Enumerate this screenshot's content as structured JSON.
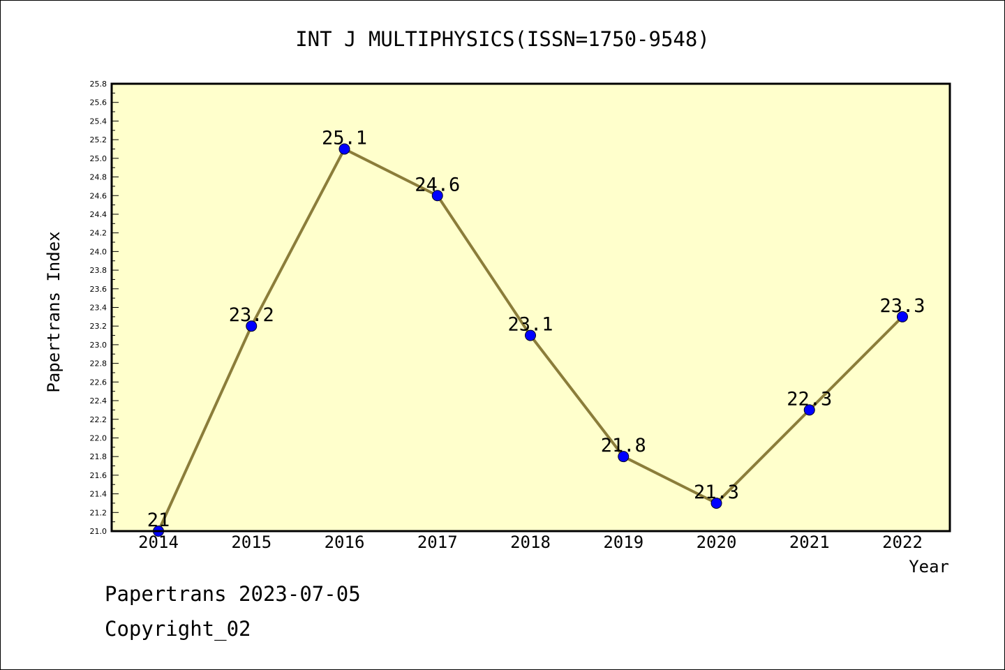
{
  "chart_data": {
    "type": "line",
    "title": "INT J MULTIPHYSICS(ISSN=1750-9548)",
    "xlabel": "Year",
    "ylabel": "Papertrans Index",
    "categories": [
      "2014",
      "2015",
      "2016",
      "2017",
      "2018",
      "2019",
      "2020",
      "2021",
      "2022"
    ],
    "values": [
      21.0,
      23.2,
      25.1,
      24.6,
      23.1,
      21.8,
      21.3,
      22.3,
      23.3
    ],
    "data_labels": [
      "21",
      "23.2",
      "25.1",
      "24.6",
      "23.1",
      "21.8",
      "21.3",
      "22.3",
      "23.3"
    ],
    "ylim": [
      21.0,
      25.8
    ],
    "yticks": [
      "21.0",
      "21.2",
      "21.4",
      "21.6",
      "21.8",
      "22.0",
      "22.2",
      "22.4",
      "22.6",
      "22.8",
      "23.0",
      "23.2",
      "23.4",
      "23.6",
      "23.8",
      "24.0",
      "24.2",
      "24.4",
      "24.6",
      "24.8",
      "25.0",
      "25.2",
      "25.4",
      "25.6",
      "25.8"
    ],
    "grid": false,
    "colors": {
      "plot_background": "#FFFFCC",
      "line": "#8B7D3A",
      "marker": "#0000FF"
    }
  },
  "footer": {
    "line1": "Papertrans 2023-07-05",
    "line2": "Copyright_02"
  }
}
